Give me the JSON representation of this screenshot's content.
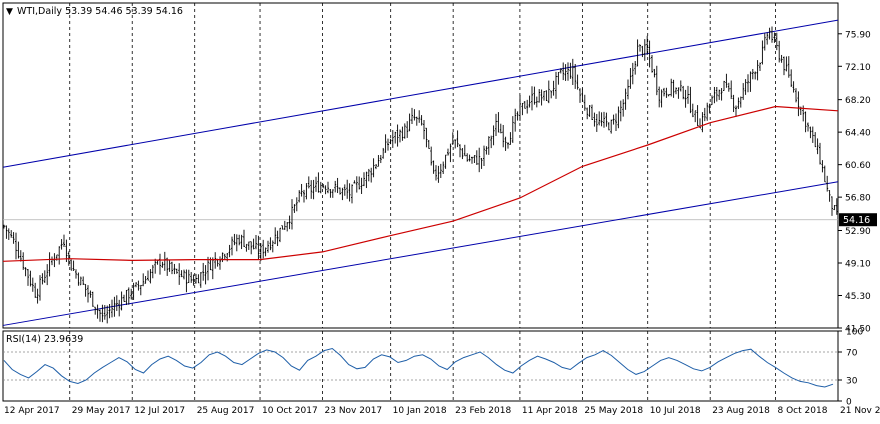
{
  "header": {
    "symbol_text": "WTI,Daily  53.39 54.46 53.39 54.16"
  },
  "rsi_header": {
    "text": "RSI(14) 23.9639"
  },
  "colors": {
    "background": "#ffffff",
    "candles": "#000000",
    "ma_line": "#cc0000",
    "channel_lines": "#0000aa",
    "rsi_line": "#1f5fa8",
    "grid": "#000000",
    "price_tag_bg": "#000000",
    "price_tag_text": "#ffffff"
  },
  "chart_data": [
    {
      "type": "candlestick",
      "title": "WTI,Daily  53.39 54.46 53.39 54.16",
      "ylim": [
        41.5,
        79.5
      ],
      "y_ticks": [
        "75.90",
        "72.10",
        "68.20",
        "64.40",
        "60.60",
        "56.80",
        "52.90",
        "49.10",
        "45.30",
        "41.50"
      ],
      "y_tick_values": [
        75.9,
        72.1,
        68.2,
        64.4,
        60.6,
        56.8,
        52.9,
        49.1,
        45.3,
        41.5
      ],
      "x_labels": [
        "12 Apr 2017",
        "29 May 2017",
        "12 Jul 2017",
        "25 Aug 2017",
        "10 Oct 2017",
        "23 Nov 2017",
        "10 Jan 2018",
        "23 Feb 2018",
        "11 Apr 2018",
        "25 May 2018",
        "10 Jul 2018",
        "23 Aug 2018",
        "8 Oct 2018",
        "21 Nov 2018"
      ],
      "last_price": {
        "label": "54.16",
        "value": 54.16
      },
      "close_path": [
        [
          "12 Apr 2017",
          53.6
        ],
        [
          "20 Apr 2017",
          51.5
        ],
        [
          "5 May 2017",
          45.5
        ],
        [
          "15 May 2017",
          49.0
        ],
        [
          "25 May 2017",
          51.8
        ],
        [
          "29 May 2017",
          49.0
        ],
        [
          "13 Jun 2017",
          45.0
        ],
        [
          "21 Jun 2017",
          42.7
        ],
        [
          "30 Jun 2017",
          44.2
        ],
        [
          "12 Jul 2017",
          45.8
        ],
        [
          "20 Jul 2017",
          47.0
        ],
        [
          "1 Aug 2017",
          49.4
        ],
        [
          "10 Aug 2017",
          48.0
        ],
        [
          "25 Aug 2017",
          47.0
        ],
        [
          "5 Sep 2017",
          49.0
        ],
        [
          "15 Sep 2017",
          50.4
        ],
        [
          "25 Sep 2017",
          52.0
        ],
        [
          "10 Oct 2017",
          50.4
        ],
        [
          "20 Oct 2017",
          52.0
        ],
        [
          "1 Nov 2017",
          54.8
        ],
        [
          "8 Nov 2017",
          57.2
        ],
        [
          "23 Nov 2017",
          58.3
        ],
        [
          "5 Dec 2017",
          57.6
        ],
        [
          "12 Dec 2017",
          57.2
        ],
        [
          "25 Dec 2017",
          59.5
        ],
        [
          "3 Jan 2018",
          61.6
        ],
        [
          "10 Jan 2018",
          63.6
        ],
        [
          "20 Jan 2018",
          64.6
        ],
        [
          "26 Jan 2018",
          66.1
        ],
        [
          "2 Feb 2018",
          65.0
        ],
        [
          "9 Feb 2018",
          59.2
        ],
        [
          "14 Feb 2018",
          60.2
        ],
        [
          "23 Feb 2018",
          63.5
        ],
        [
          "5 Mar 2018",
          61.2
        ],
        [
          "15 Mar 2018",
          61.2
        ],
        [
          "25 Mar 2018",
          65.2
        ],
        [
          "2 Apr 2018",
          63.4
        ],
        [
          "11 Apr 2018",
          67.0
        ],
        [
          "20 Apr 2018",
          68.4
        ],
        [
          "30 Apr 2018",
          68.6
        ],
        [
          "10 May 2018",
          71.2
        ],
        [
          "18 May 2018",
          71.5
        ],
        [
          "25 May 2018",
          67.9
        ],
        [
          "5 Jun 2018",
          65.5
        ],
        [
          "15 Jun 2018",
          65.2
        ],
        [
          "25 Jun 2018",
          68.5
        ],
        [
          "3 Jul 2018",
          74.2
        ],
        [
          "10 Jul 2018",
          73.8
        ],
        [
          "18 Jul 2018",
          68.8
        ],
        [
          "26 Jul 2018",
          69.6
        ],
        [
          "5 Aug 2018",
          69.0
        ],
        [
          "15 Aug 2018",
          65.3
        ],
        [
          "23 Aug 2018",
          67.8
        ],
        [
          "1 Sep 2018",
          70.0
        ],
        [
          "10 Sep 2018",
          67.5
        ],
        [
          "20 Sep 2018",
          70.8
        ],
        [
          "28 Sep 2018",
          73.2
        ],
        [
          "3 Oct 2018",
          76.4
        ],
        [
          "8 Oct 2018",
          74.5
        ],
        [
          "15 Oct 2018",
          71.8
        ],
        [
          "25 Oct 2018",
          67.5
        ],
        [
          "1 Nov 2018",
          64.5
        ],
        [
          "8 Nov 2018",
          61.5
        ],
        [
          "15 Nov 2018",
          56.5
        ],
        [
          "21 Nov 2018",
          54.16
        ]
      ],
      "moving_average": [
        [
          "12 Apr 2017",
          49.3
        ],
        [
          "29 May 2017",
          49.6
        ],
        [
          "12 Jul 2017",
          49.4
        ],
        [
          "25 Aug 2017",
          49.5
        ],
        [
          "10 Oct 2017",
          49.5
        ],
        [
          "23 Nov 2017",
          50.4
        ],
        [
          "10 Jan 2018",
          52.3
        ],
        [
          "23 Feb 2018",
          54.0
        ],
        [
          "11 Apr 2018",
          56.7
        ],
        [
          "25 May 2018",
          60.4
        ],
        [
          "10 Jul 2018",
          62.9
        ],
        [
          "23 Aug 2018",
          65.5
        ],
        [
          "8 Oct 2018",
          67.4
        ],
        [
          "21 Nov 2018",
          66.9
        ]
      ],
      "trend_channel": {
        "upper": [
          [
            "12 Apr 2017",
            60.3
          ],
          [
            "21 Nov 2018",
            77.5
          ]
        ],
        "lower": [
          [
            "12 Apr 2017",
            41.8
          ],
          [
            "21 Nov 2018",
            58.6
          ]
        ]
      }
    },
    {
      "type": "line",
      "title": "RSI(14) 23.9639",
      "ylim": [
        0,
        100
      ],
      "y_ticks": [
        "100",
        "70",
        "30",
        "0"
      ],
      "y_tick_values": [
        100,
        70,
        30,
        0
      ],
      "levels": [
        30,
        70
      ],
      "series": [
        {
          "name": "RSI(14)",
          "values": [
            58,
            45,
            38,
            33,
            42,
            52,
            47,
            36,
            28,
            25,
            30,
            40,
            48,
            55,
            62,
            56,
            45,
            40,
            52,
            60,
            64,
            58,
            50,
            47,
            55,
            66,
            70,
            64,
            55,
            52,
            60,
            68,
            73,
            70,
            62,
            50,
            44,
            58,
            64,
            72,
            75,
            65,
            52,
            46,
            48,
            60,
            66,
            63,
            55,
            58,
            64,
            66,
            60,
            50,
            45,
            56,
            62,
            66,
            70,
            62,
            52,
            44,
            40,
            50,
            58,
            64,
            60,
            55,
            48,
            45,
            54,
            62,
            66,
            72,
            65,
            55,
            45,
            38,
            42,
            50,
            58,
            62,
            58,
            52,
            46,
            43,
            48,
            56,
            62,
            68,
            72,
            74,
            64,
            55,
            48,
            40,
            33,
            28,
            26,
            22,
            20,
            24
          ],
          "last_value": 23.9639
        }
      ]
    }
  ]
}
